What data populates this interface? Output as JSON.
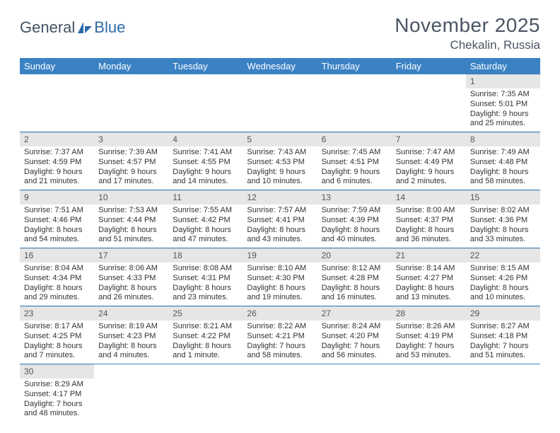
{
  "logo": {
    "text1": "General",
    "text2": "Blue"
  },
  "title": "November 2025",
  "location": "Chekalin, Russia",
  "header_bg": "#3b82c4",
  "header_text_color": "#ffffff",
  "daynum_bg": "#e6e6e6",
  "row_border_color": "#3b82c4",
  "weekdays": [
    "Sunday",
    "Monday",
    "Tuesday",
    "Wednesday",
    "Thursday",
    "Friday",
    "Saturday"
  ],
  "weeks": [
    [
      null,
      null,
      null,
      null,
      null,
      null,
      {
        "n": "1",
        "sr": "Sunrise: 7:35 AM",
        "ss": "Sunset: 5:01 PM",
        "dl": "Daylight: 9 hours and 25 minutes."
      }
    ],
    [
      {
        "n": "2",
        "sr": "Sunrise: 7:37 AM",
        "ss": "Sunset: 4:59 PM",
        "dl": "Daylight: 9 hours and 21 minutes."
      },
      {
        "n": "3",
        "sr": "Sunrise: 7:39 AM",
        "ss": "Sunset: 4:57 PM",
        "dl": "Daylight: 9 hours and 17 minutes."
      },
      {
        "n": "4",
        "sr": "Sunrise: 7:41 AM",
        "ss": "Sunset: 4:55 PM",
        "dl": "Daylight: 9 hours and 14 minutes."
      },
      {
        "n": "5",
        "sr": "Sunrise: 7:43 AM",
        "ss": "Sunset: 4:53 PM",
        "dl": "Daylight: 9 hours and 10 minutes."
      },
      {
        "n": "6",
        "sr": "Sunrise: 7:45 AM",
        "ss": "Sunset: 4:51 PM",
        "dl": "Daylight: 9 hours and 6 minutes."
      },
      {
        "n": "7",
        "sr": "Sunrise: 7:47 AM",
        "ss": "Sunset: 4:49 PM",
        "dl": "Daylight: 9 hours and 2 minutes."
      },
      {
        "n": "8",
        "sr": "Sunrise: 7:49 AM",
        "ss": "Sunset: 4:48 PM",
        "dl": "Daylight: 8 hours and 58 minutes."
      }
    ],
    [
      {
        "n": "9",
        "sr": "Sunrise: 7:51 AM",
        "ss": "Sunset: 4:46 PM",
        "dl": "Daylight: 8 hours and 54 minutes."
      },
      {
        "n": "10",
        "sr": "Sunrise: 7:53 AM",
        "ss": "Sunset: 4:44 PM",
        "dl": "Daylight: 8 hours and 51 minutes."
      },
      {
        "n": "11",
        "sr": "Sunrise: 7:55 AM",
        "ss": "Sunset: 4:42 PM",
        "dl": "Daylight: 8 hours and 47 minutes."
      },
      {
        "n": "12",
        "sr": "Sunrise: 7:57 AM",
        "ss": "Sunset: 4:41 PM",
        "dl": "Daylight: 8 hours and 43 minutes."
      },
      {
        "n": "13",
        "sr": "Sunrise: 7:59 AM",
        "ss": "Sunset: 4:39 PM",
        "dl": "Daylight: 8 hours and 40 minutes."
      },
      {
        "n": "14",
        "sr": "Sunrise: 8:00 AM",
        "ss": "Sunset: 4:37 PM",
        "dl": "Daylight: 8 hours and 36 minutes."
      },
      {
        "n": "15",
        "sr": "Sunrise: 8:02 AM",
        "ss": "Sunset: 4:36 PM",
        "dl": "Daylight: 8 hours and 33 minutes."
      }
    ],
    [
      {
        "n": "16",
        "sr": "Sunrise: 8:04 AM",
        "ss": "Sunset: 4:34 PM",
        "dl": "Daylight: 8 hours and 29 minutes."
      },
      {
        "n": "17",
        "sr": "Sunrise: 8:06 AM",
        "ss": "Sunset: 4:33 PM",
        "dl": "Daylight: 8 hours and 26 minutes."
      },
      {
        "n": "18",
        "sr": "Sunrise: 8:08 AM",
        "ss": "Sunset: 4:31 PM",
        "dl": "Daylight: 8 hours and 23 minutes."
      },
      {
        "n": "19",
        "sr": "Sunrise: 8:10 AM",
        "ss": "Sunset: 4:30 PM",
        "dl": "Daylight: 8 hours and 19 minutes."
      },
      {
        "n": "20",
        "sr": "Sunrise: 8:12 AM",
        "ss": "Sunset: 4:28 PM",
        "dl": "Daylight: 8 hours and 16 minutes."
      },
      {
        "n": "21",
        "sr": "Sunrise: 8:14 AM",
        "ss": "Sunset: 4:27 PM",
        "dl": "Daylight: 8 hours and 13 minutes."
      },
      {
        "n": "22",
        "sr": "Sunrise: 8:15 AM",
        "ss": "Sunset: 4:26 PM",
        "dl": "Daylight: 8 hours and 10 minutes."
      }
    ],
    [
      {
        "n": "23",
        "sr": "Sunrise: 8:17 AM",
        "ss": "Sunset: 4:25 PM",
        "dl": "Daylight: 8 hours and 7 minutes."
      },
      {
        "n": "24",
        "sr": "Sunrise: 8:19 AM",
        "ss": "Sunset: 4:23 PM",
        "dl": "Daylight: 8 hours and 4 minutes."
      },
      {
        "n": "25",
        "sr": "Sunrise: 8:21 AM",
        "ss": "Sunset: 4:22 PM",
        "dl": "Daylight: 8 hours and 1 minute."
      },
      {
        "n": "26",
        "sr": "Sunrise: 8:22 AM",
        "ss": "Sunset: 4:21 PM",
        "dl": "Daylight: 7 hours and 58 minutes."
      },
      {
        "n": "27",
        "sr": "Sunrise: 8:24 AM",
        "ss": "Sunset: 4:20 PM",
        "dl": "Daylight: 7 hours and 56 minutes."
      },
      {
        "n": "28",
        "sr": "Sunrise: 8:26 AM",
        "ss": "Sunset: 4:19 PM",
        "dl": "Daylight: 7 hours and 53 minutes."
      },
      {
        "n": "29",
        "sr": "Sunrise: 8:27 AM",
        "ss": "Sunset: 4:18 PM",
        "dl": "Daylight: 7 hours and 51 minutes."
      }
    ],
    [
      {
        "n": "30",
        "sr": "Sunrise: 8:29 AM",
        "ss": "Sunset: 4:17 PM",
        "dl": "Daylight: 7 hours and 48 minutes."
      },
      null,
      null,
      null,
      null,
      null,
      null
    ]
  ]
}
